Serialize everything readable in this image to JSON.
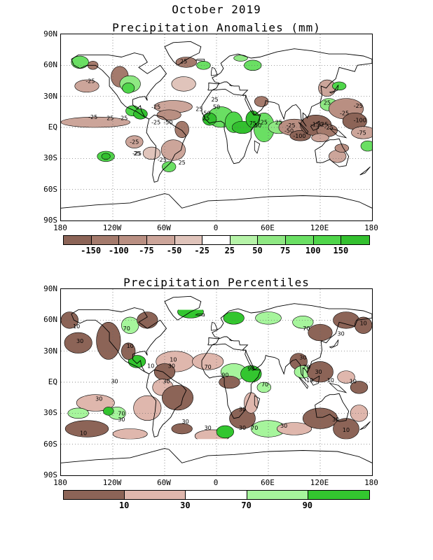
{
  "title": "October 2019",
  "panel1": {
    "title": "Precipitation Anomalies (mm)",
    "y_ticks": [
      "90N",
      "60N",
      "30N",
      "EQ",
      "30S",
      "60S",
      "90S"
    ],
    "x_ticks": [
      "180",
      "120W",
      "60W",
      "0",
      "60E",
      "120E",
      "180"
    ],
    "colorbar": {
      "colors": [
        "#8c6457",
        "#a47a6c",
        "#b98f82",
        "#cca59a",
        "#e0c4bb",
        "#ffffff",
        "#b6f3a8",
        "#8fe883",
        "#6adf63",
        "#4fd54a",
        "#33c02f"
      ],
      "labels": [
        "-150",
        "-100",
        "-75",
        "-50",
        "-25",
        "25",
        "50",
        "75",
        "100",
        "150"
      ]
    },
    "contour_labels": [
      {
        "text": "25",
        "lon": -38,
        "lat": 62
      },
      {
        "text": "-25",
        "lon": -146,
        "lat": 43
      },
      {
        "text": "-25",
        "lon": -143,
        "lat": 8
      },
      {
        "text": "-25",
        "lon": -108,
        "lat": 7
      },
      {
        "text": "25",
        "lon": -123,
        "lat": 7
      },
      {
        "text": "-25",
        "lon": -70,
        "lat": 18
      },
      {
        "text": "-25",
        "lon": -70,
        "lat": 3
      },
      {
        "text": "-50",
        "lon": -56,
        "lat": 3
      },
      {
        "text": "25",
        "lon": -20,
        "lat": 16
      },
      {
        "text": "-50",
        "lon": -12,
        "lat": 12
      },
      {
        "text": "25",
        "lon": -2,
        "lat": 25
      },
      {
        "text": "50",
        "lon": 0,
        "lat": 18
      },
      {
        "text": "25",
        "lon": -12,
        "lat": 7
      },
      {
        "text": "-25",
        "lon": -92,
        "lat": -27
      },
      {
        "text": "25",
        "lon": -92,
        "lat": -27
      },
      {
        "text": "-25",
        "lon": -95,
        "lat": -16
      },
      {
        "text": "-25",
        "lon": -63,
        "lat": -33
      },
      {
        "text": "25",
        "lon": -40,
        "lat": -36
      },
      {
        "text": "75",
        "lon": 42,
        "lat": 2
      },
      {
        "text": "50",
        "lon": 48,
        "lat": 0
      },
      {
        "text": "25",
        "lon": 55,
        "lat": 3
      },
      {
        "text": "25",
        "lon": 72,
        "lat": 3
      },
      {
        "text": "-25",
        "lon": 86,
        "lat": 0
      },
      {
        "text": "-50",
        "lon": 84,
        "lat": -5
      },
      {
        "text": "-100",
        "lon": 96,
        "lat": -10
      },
      {
        "text": "-150",
        "lon": 116,
        "lat": 1
      },
      {
        "text": "-25",
        "lon": 130,
        "lat": -2
      },
      {
        "text": "-25",
        "lon": 124,
        "lat": 1
      },
      {
        "text": "-25",
        "lon": 148,
        "lat": 12
      },
      {
        "text": "-25",
        "lon": 164,
        "lat": 19
      },
      {
        "text": "-100",
        "lon": 166,
        "lat": 5
      },
      {
        "text": "-75",
        "lon": 168,
        "lat": -7
      },
      {
        "text": "25",
        "lon": 128,
        "lat": 22
      }
    ]
  },
  "panel2": {
    "title": "Precipitation Percentiles",
    "y_ticks": [
      "90N",
      "60N",
      "30N",
      "EQ",
      "30S",
      "60S",
      "90S"
    ],
    "x_ticks": [
      "180",
      "120W",
      "60W",
      "0",
      "60E",
      "120E",
      "180"
    ],
    "colorbar": {
      "colors": [
        "#8c6457",
        "#dfb7ad",
        "#ffffff",
        "#a6f59c",
        "#33c62f"
      ],
      "labels": [
        "10",
        "30",
        "70",
        "90"
      ]
    },
    "contour_labels": [
      {
        "text": "10",
        "lon": -162,
        "lat": 52
      },
      {
        "text": "30",
        "lon": -158,
        "lat": 38
      },
      {
        "text": "70",
        "lon": -104,
        "lat": 50
      },
      {
        "text": "10",
        "lon": -100,
        "lat": 33
      },
      {
        "text": "30",
        "lon": -118,
        "lat": -1
      },
      {
        "text": "10",
        "lon": -76,
        "lat": 14
      },
      {
        "text": "30",
        "lon": -52,
        "lat": 14
      },
      {
        "text": "10",
        "lon": -50,
        "lat": 20
      },
      {
        "text": "30",
        "lon": -58,
        "lat": -1
      },
      {
        "text": "70",
        "lon": -10,
        "lat": 13
      },
      {
        "text": "90",
        "lon": 10,
        "lat": 5
      },
      {
        "text": "90",
        "lon": 40,
        "lat": 11
      },
      {
        "text": "70",
        "lon": 56,
        "lat": -4
      },
      {
        "text": "70",
        "lon": 104,
        "lat": 50
      },
      {
        "text": "30",
        "lon": 144,
        "lat": 45
      },
      {
        "text": "10",
        "lon": 170,
        "lat": 55
      },
      {
        "text": "30",
        "lon": 100,
        "lat": 22
      },
      {
        "text": "70",
        "lon": 104,
        "lat": 13
      },
      {
        "text": "30",
        "lon": 118,
        "lat": 8
      },
      {
        "text": "10",
        "lon": 108,
        "lat": 0
      },
      {
        "text": "10",
        "lon": 132,
        "lat": 0
      },
      {
        "text": "10",
        "lon": 158,
        "lat": -1
      },
      {
        "text": "30",
        "lon": -136,
        "lat": -18
      },
      {
        "text": "70",
        "lon": -110,
        "lat": -32
      },
      {
        "text": "30",
        "lon": -110,
        "lat": -38
      },
      {
        "text": "10",
        "lon": -154,
        "lat": -51
      },
      {
        "text": "30",
        "lon": -36,
        "lat": -40
      },
      {
        "text": "30",
        "lon": -10,
        "lat": -46
      },
      {
        "text": "30",
        "lon": 30,
        "lat": -28
      },
      {
        "text": "30",
        "lon": 30,
        "lat": -46
      },
      {
        "text": "70",
        "lon": 44,
        "lat": -46
      },
      {
        "text": "30",
        "lon": 78,
        "lat": -44
      },
      {
        "text": "10",
        "lon": 150,
        "lat": -48
      },
      {
        "text": "30",
        "lon": 138,
        "lat": -38
      }
    ]
  }
}
